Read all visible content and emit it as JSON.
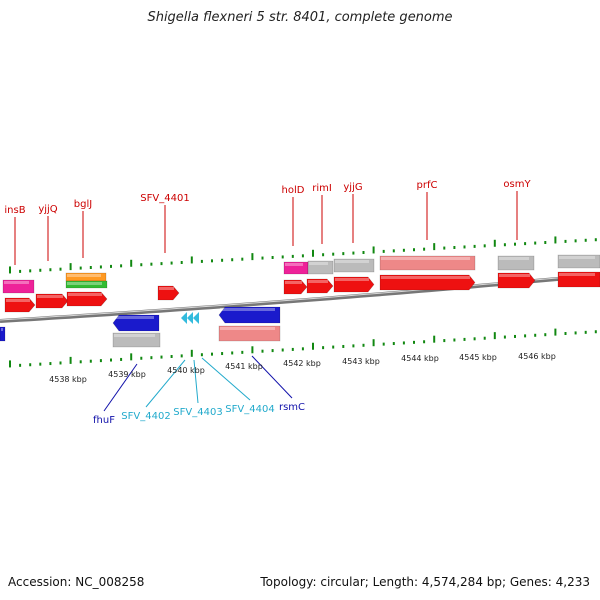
{
  "title": "Shigella flexneri 5 str. 8401, complete genome",
  "footer": {
    "accession": "Accession: NC_008258",
    "summary": "Topology: circular; Length: 4,574,284 bp; Genes: 4,233"
  },
  "colors": {
    "red": "#ee1111",
    "blue": "#1a1acc",
    "pink": "#ee2299",
    "grey": "#bbbbbb",
    "salmon": "#ee8888",
    "orange": "#ff9922",
    "green": "#33bb33",
    "cyan": "#33bbdd",
    "tick": "#118811",
    "upper_label": "#cc0000",
    "lower_label_blue": "#1111aa",
    "lower_label_cyan": "#22aacc"
  },
  "scale": {
    "unit": "kbp",
    "labels": [
      "4538 kbp",
      "4539 kbp",
      "4540 kbp",
      "4541 kbp",
      "4542 kbp",
      "4543 kbp",
      "4544 kbp",
      "4545 kbp",
      "4546 kbp"
    ]
  },
  "upper_labels": [
    "insB",
    "yjjQ",
    "bglJ",
    "SFV_4401",
    "holD",
    "rimI",
    "yjjG",
    "prfC",
    "osmY"
  ],
  "lower_labels": [
    {
      "text": "fhuF",
      "color": "blue"
    },
    {
      "text": "SFV_4402",
      "color": "cyan"
    },
    {
      "text": "SFV_4403",
      "color": "cyan"
    },
    {
      "text": "SFV_4404",
      "color": "cyan"
    },
    {
      "text": "rsmC",
      "color": "blue"
    }
  ]
}
